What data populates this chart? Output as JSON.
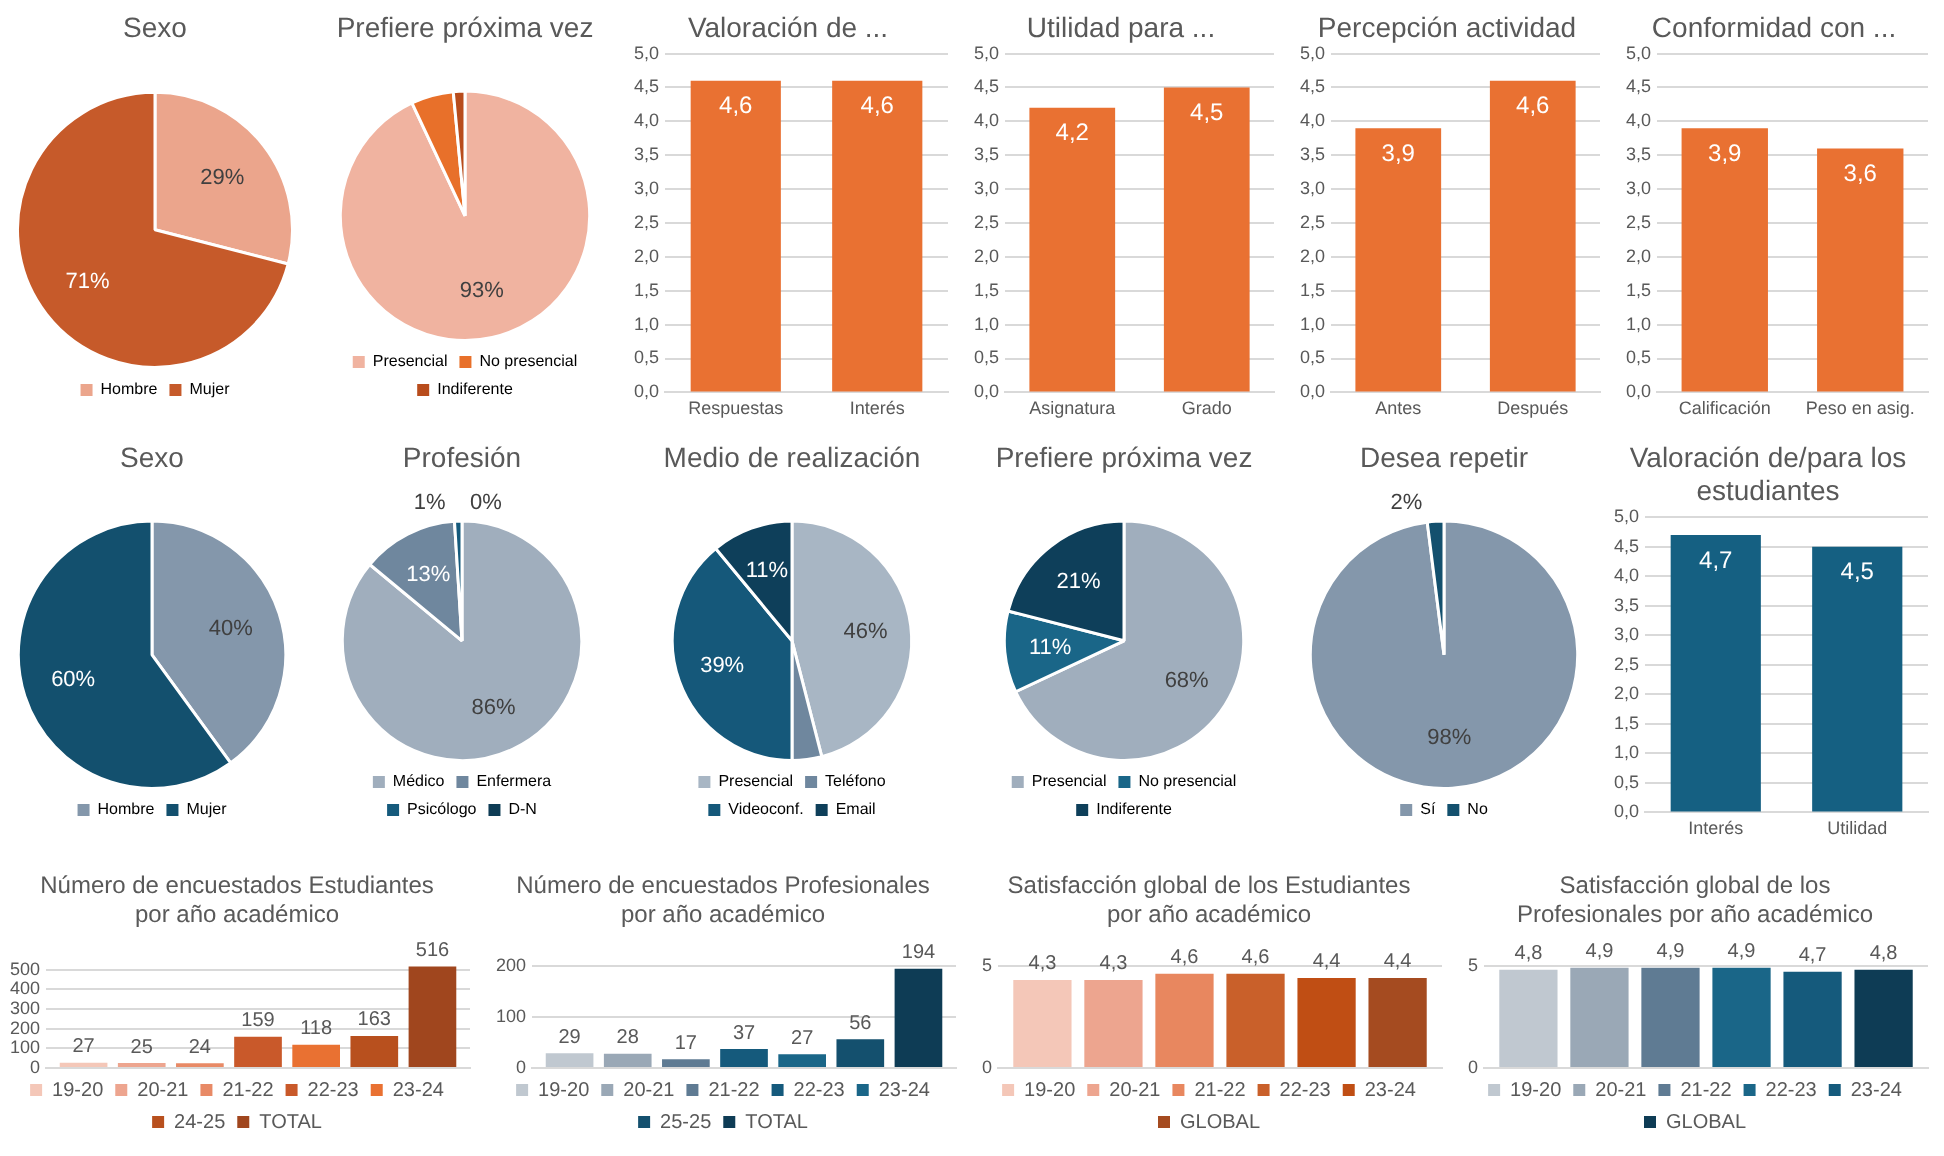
{
  "chart_data": [
    {
      "type": "pie",
      "title": "Sexo",
      "categories": [
        "Hombre",
        "Mujer"
      ],
      "values": [
        29,
        71
      ],
      "colors": [
        "#eba58c",
        "#c65a2a"
      ],
      "value_labels": [
        "29%",
        "71%"
      ],
      "legend": "bottom"
    },
    {
      "type": "pie",
      "title": "Prefiere próxima vez",
      "categories": [
        "Presencial",
        "No presencial",
        "Indiferente"
      ],
      "values": [
        93,
        5.5,
        1.5
      ],
      "colors": [
        "#f0b3a0",
        "#e8702a",
        "#b84c1c"
      ],
      "value_labels": [
        "93%",
        null,
        null
      ],
      "legend": "bottom"
    },
    {
      "type": "bar",
      "title": "Valoración de ...",
      "categories": [
        "Respuestas",
        "Interés"
      ],
      "values": [
        4.6,
        4.6
      ],
      "color": "#e97132",
      "value_labels": [
        "4,6",
        "4,6"
      ],
      "ylim": [
        0,
        5
      ],
      "yticks": [
        {
          "value": 0,
          "label": "0,0"
        },
        {
          "value": 0.5,
          "label": "0,5"
        },
        {
          "value": 1,
          "label": "1,0"
        },
        {
          "value": 1.5,
          "label": "1,5"
        },
        {
          "value": 2,
          "label": "2,0"
        },
        {
          "value": 2.5,
          "label": "2,5"
        },
        {
          "value": 3,
          "label": "3,0"
        },
        {
          "value": 3.5,
          "label": "3,5"
        },
        {
          "value": 4,
          "label": "4,0"
        },
        {
          "value": 4.5,
          "label": "4,5"
        },
        {
          "value": 5,
          "label": "5,0"
        }
      ],
      "grid": "y"
    },
    {
      "type": "bar",
      "title": "Utilidad para ...",
      "categories": [
        "Asignatura",
        "Grado"
      ],
      "values": [
        4.2,
        4.5
      ],
      "color": "#e97132",
      "value_labels": [
        "4,2",
        "4,5"
      ],
      "ylim": [
        0,
        5
      ],
      "yticks": [
        {
          "value": 0,
          "label": "0,0"
        },
        {
          "value": 0.5,
          "label": "0,5"
        },
        {
          "value": 1,
          "label": "1,0"
        },
        {
          "value": 1.5,
          "label": "1,5"
        },
        {
          "value": 2,
          "label": "2,0"
        },
        {
          "value": 2.5,
          "label": "2,5"
        },
        {
          "value": 3,
          "label": "3,0"
        },
        {
          "value": 3.5,
          "label": "3,5"
        },
        {
          "value": 4,
          "label": "4,0"
        },
        {
          "value": 4.5,
          "label": "4,5"
        },
        {
          "value": 5,
          "label": "5,0"
        }
      ],
      "grid": "y"
    },
    {
      "type": "bar",
      "title": "Percepción actividad",
      "categories": [
        "Antes",
        "Después"
      ],
      "values": [
        3.9,
        4.6
      ],
      "color": "#e97132",
      "value_labels": [
        "3,9",
        "4,6"
      ],
      "ylim": [
        0,
        5
      ],
      "yticks": [
        {
          "value": 0,
          "label": "0,0"
        },
        {
          "value": 0.5,
          "label": "0,5"
        },
        {
          "value": 1,
          "label": "1,0"
        },
        {
          "value": 1.5,
          "label": "1,5"
        },
        {
          "value": 2,
          "label": "2,0"
        },
        {
          "value": 2.5,
          "label": "2,5"
        },
        {
          "value": 3,
          "label": "3,0"
        },
        {
          "value": 3.5,
          "label": "3,5"
        },
        {
          "value": 4,
          "label": "4,0"
        },
        {
          "value": 4.5,
          "label": "4,5"
        },
        {
          "value": 5,
          "label": "5,0"
        }
      ],
      "grid": "y"
    },
    {
      "type": "bar",
      "title": "Conformidad con ...",
      "categories": [
        "Calificación",
        "Peso en asig."
      ],
      "values": [
        3.9,
        3.6
      ],
      "color": "#e97132",
      "value_labels": [
        "3,9",
        "3,6"
      ],
      "ylim": [
        0,
        5
      ],
      "yticks": [
        {
          "value": 0,
          "label": "0,0"
        },
        {
          "value": 0.5,
          "label": "0,5"
        },
        {
          "value": 1,
          "label": "1,0"
        },
        {
          "value": 1.5,
          "label": "1,5"
        },
        {
          "value": 2,
          "label": "2,0"
        },
        {
          "value": 2.5,
          "label": "2,5"
        },
        {
          "value": 3,
          "label": "3,0"
        },
        {
          "value": 3.5,
          "label": "3,5"
        },
        {
          "value": 4,
          "label": "4,0"
        },
        {
          "value": 4.5,
          "label": "4,5"
        },
        {
          "value": 5,
          "label": "5,0"
        }
      ],
      "grid": "y"
    },
    {
      "type": "pie",
      "title": "Sexo",
      "categories": [
        "Hombre",
        "Mujer"
      ],
      "values": [
        40,
        60
      ],
      "colors": [
        "#8497ab",
        "#13506e"
      ],
      "value_labels": [
        "40%",
        "60%"
      ],
      "legend": "bottom"
    },
    {
      "type": "pie",
      "title": "Profesión",
      "categories": [
        "Médico",
        "Enfermera",
        "Psicólogo",
        "D-N"
      ],
      "values": [
        86,
        13,
        1,
        0
      ],
      "colors": [
        "#a0aebd",
        "#6f879e",
        "#155a7c",
        "#0e3c55"
      ],
      "value_labels": [
        "86%",
        "13%",
        "1%",
        "0%"
      ],
      "legend": "bottom"
    },
    {
      "type": "pie",
      "title": "Medio de realización",
      "categories": [
        "Presencial",
        "Teléfono",
        "Videoconf.",
        "Email"
      ],
      "values": [
        46,
        4,
        39,
        11
      ],
      "colors": [
        "#a8b6c4",
        "#6f879e",
        "#15587a",
        "#0e3f5a"
      ],
      "value_labels": [
        "46%",
        null,
        "39%",
        "11%"
      ],
      "legend": "bottom"
    },
    {
      "type": "pie",
      "title": "Prefiere próxima vez",
      "categories": [
        "Presencial",
        "No presencial",
        "Indiferente"
      ],
      "values": [
        68,
        11,
        21
      ],
      "colors": [
        "#a0aebd",
        "#1a6688",
        "#0e3f5a"
      ],
      "value_labels": [
        "68%",
        "11%",
        "21%"
      ],
      "legend": "bottom"
    },
    {
      "type": "pie",
      "title": "Desea repetir",
      "categories": [
        "Sí",
        "No"
      ],
      "values": [
        98,
        2
      ],
      "colors": [
        "#8497ab",
        "#13506e"
      ],
      "value_labels": [
        "98%",
        "2%"
      ],
      "legend": "bottom"
    },
    {
      "type": "bar",
      "title": "Valoración de/para los estudiantes",
      "categories": [
        "Interés",
        "Utilidad"
      ],
      "values": [
        4.7,
        4.5
      ],
      "color": "#156082",
      "value_labels": [
        "4,7",
        "4,5"
      ],
      "ylim": [
        0,
        5
      ],
      "yticks": [
        {
          "value": 0,
          "label": "0,0"
        },
        {
          "value": 0.5,
          "label": "0,5"
        },
        {
          "value": 1,
          "label": "1,0"
        },
        {
          "value": 1.5,
          "label": "1,5"
        },
        {
          "value": 2,
          "label": "2,0"
        },
        {
          "value": 2.5,
          "label": "2,5"
        },
        {
          "value": 3,
          "label": "3,0"
        },
        {
          "value": 3.5,
          "label": "3,5"
        },
        {
          "value": 4,
          "label": "4,0"
        },
        {
          "value": 4.5,
          "label": "4,5"
        },
        {
          "value": 5,
          "label": "5,0"
        }
      ],
      "grid": "y"
    },
    {
      "type": "bar",
      "title": "Número de encuestados Estudiantes por año académico",
      "categories": [
        null
      ],
      "series": [
        {
          "name": "19-20",
          "color": "#f4c7b8",
          "values": [
            27
          ],
          "value_labels": [
            "27"
          ]
        },
        {
          "name": "20-21",
          "color": "#eda58f",
          "values": [
            25
          ],
          "value_labels": [
            "25"
          ]
        },
        {
          "name": "21-22",
          "color": "#e88a66",
          "values": [
            24
          ],
          "value_labels": [
            "24"
          ]
        },
        {
          "name": "22-23",
          "color": "#c9592a",
          "values": [
            159
          ],
          "value_labels": [
            "159"
          ]
        },
        {
          "name": "23-24",
          "color": "#e97132",
          "values": [
            118
          ],
          "value_labels": [
            "118"
          ]
        },
        {
          "name": "24-25",
          "color": "#b8501e",
          "values": [
            163
          ],
          "value_labels": [
            "163"
          ]
        },
        {
          "name": "TOTAL",
          "color": "#a0461e",
          "values": [
            516
          ],
          "value_labels": [
            "516"
          ]
        }
      ],
      "ylim": [
        0,
        520
      ],
      "yticks": [
        0,
        100,
        200,
        300,
        400,
        500
      ],
      "grid": "y",
      "legend": "bottom",
      "tick_labels": "y"
    },
    {
      "type": "bar",
      "title": "Número de encuestados Profesionales por año académico",
      "categories": [
        null
      ],
      "series": [
        {
          "name": "19-20",
          "color": "#c0c8d0",
          "values": [
            29
          ],
          "value_labels": [
            "29"
          ]
        },
        {
          "name": "20-21",
          "color": "#9aa8b6",
          "values": [
            28
          ],
          "value_labels": [
            "28"
          ]
        },
        {
          "name": "21-22",
          "color": "#5f7b93",
          "values": [
            17
          ],
          "value_labels": [
            "17"
          ]
        },
        {
          "name": "22-23",
          "color": "#155a7c",
          "values": [
            37
          ],
          "value_labels": [
            "37"
          ]
        },
        {
          "name": "23-24",
          "color": "#1a6688",
          "values": [
            27
          ],
          "value_labels": [
            "27"
          ]
        },
        {
          "name": "25-25",
          "color": "#14506e",
          "values": [
            56
          ],
          "value_labels": [
            "56"
          ]
        },
        {
          "name": "TOTAL",
          "color": "#0e3c55",
          "values": [
            194
          ],
          "value_labels": [
            "194"
          ]
        }
      ],
      "ylim": [
        0,
        200
      ],
      "yticks": [
        0,
        100,
        200
      ],
      "grid": "y",
      "legend": "bottom",
      "tick_labels": "y"
    },
    {
      "type": "bar",
      "title": "Satisfacción global de los Estudiantes por año académico",
      "categories": [
        null
      ],
      "series": [
        {
          "name": "19-20",
          "color": "#f4c7b8",
          "values": [
            4.3
          ],
          "value_labels": [
            "4,3"
          ]
        },
        {
          "name": "20-21",
          "color": "#eda58f",
          "values": [
            4.3
          ],
          "value_labels": [
            "4,3"
          ]
        },
        {
          "name": "21-22",
          "color": "#e8875f",
          "values": [
            4.6
          ],
          "value_labels": [
            "4,6"
          ]
        },
        {
          "name": "22-23",
          "color": "#c9602a",
          "values": [
            4.6
          ],
          "value_labels": [
            "4,6"
          ]
        },
        {
          "name": "23-24",
          "color": "#c04e14",
          "values": [
            4.4
          ],
          "value_labels": [
            "4,4"
          ]
        },
        {
          "name": "GLOBAL",
          "color": "#a54b20",
          "values": [
            4.4
          ],
          "value_labels": [
            "4,4"
          ]
        }
      ],
      "ylim": [
        0,
        5
      ],
      "yticks": [
        0,
        5
      ],
      "grid": "y",
      "legend": "bottom",
      "tick_labels": "y"
    },
    {
      "type": "bar",
      "title": "Satisfacción global de los Profesionales por año académico",
      "categories": [
        null
      ],
      "series": [
        {
          "name": "19-20",
          "color": "#c0c8d0",
          "values": [
            4.8
          ],
          "value_labels": [
            "4,8"
          ]
        },
        {
          "name": "20-21",
          "color": "#9aa8b6",
          "values": [
            4.9
          ],
          "value_labels": [
            "4,9"
          ]
        },
        {
          "name": "21-22",
          "color": "#5f7b93",
          "values": [
            4.9
          ],
          "value_labels": [
            "4,9"
          ]
        },
        {
          "name": "22-23",
          "color": "#1a6688",
          "values": [
            4.9
          ],
          "value_labels": [
            "4,9"
          ]
        },
        {
          "name": "23-24",
          "color": "#155a7c",
          "values": [
            4.7
          ],
          "value_labels": [
            "4,7"
          ]
        },
        {
          "name": "GLOBAL",
          "color": "#0e3c55",
          "values": [
            4.8
          ],
          "value_labels": [
            "4,8"
          ]
        }
      ],
      "ylim": [
        0,
        5
      ],
      "yticks": [
        0,
        5
      ],
      "grid": "y",
      "legend": "bottom",
      "tick_labels": "y"
    }
  ]
}
